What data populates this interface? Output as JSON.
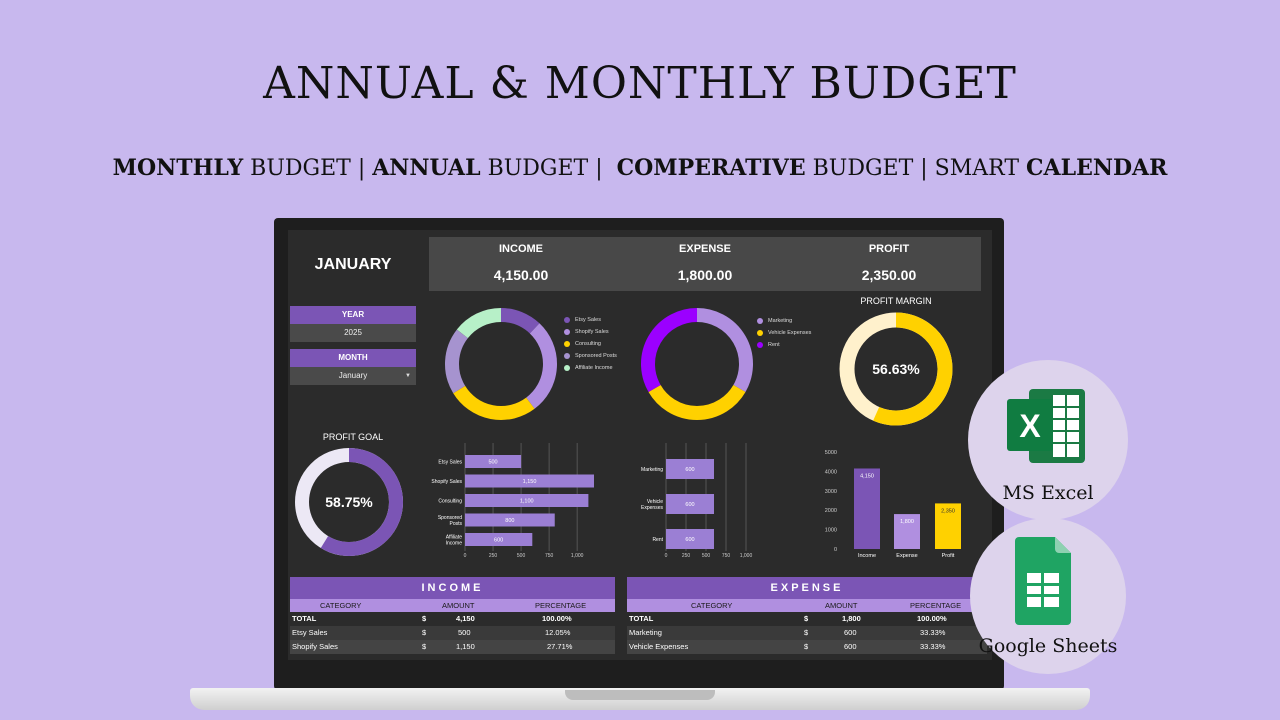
{
  "header": {
    "title": "ANNUAL & MONTHLY BUDGET",
    "subtitle_parts": [
      {
        "text": "MONTHLY",
        "bold": true
      },
      {
        "text": " BUDGET | ",
        "bold": false
      },
      {
        "text": "ANNUAL",
        "bold": true
      },
      {
        "text": " BUDGET |  ",
        "bold": false
      },
      {
        "text": "COMPERATIVE",
        "bold": true
      },
      {
        "text": " BUDGET | SMART ",
        "bold": false
      },
      {
        "text": "CALENDAR",
        "bold": true
      }
    ]
  },
  "dashboard": {
    "month_title": "JANUARY",
    "kpis": [
      {
        "label": "INCOME",
        "value": "4,150.00"
      },
      {
        "label": "EXPENSE",
        "value": "1,800.00"
      },
      {
        "label": "PROFIT",
        "value": "2,350.00"
      }
    ],
    "year": {
      "label": "YEAR",
      "value": "2025"
    },
    "month": {
      "label": "MONTH",
      "value": "January"
    },
    "profit_goal": {
      "label": "PROFIT GOAL",
      "value": "58.75%",
      "fraction": 0.5875
    },
    "profit_margin": {
      "label": "PROFIT MARGIN",
      "value": "56.63%",
      "fraction": 0.5663
    }
  },
  "colors": {
    "purple": "#7b55b5",
    "lavender": "#b08fe0",
    "mid_purple": "#9b7fd4",
    "yellow": "#ffd100",
    "mint": "#b7f0c8",
    "violet": "#9b00ff",
    "cream": "#fff1cc"
  },
  "chart_data": [
    {
      "type": "pie",
      "title": "",
      "labels": [
        "Etsy Sales",
        "Shopify Sales",
        "Consulting",
        "Sponsored Posts",
        "Affiliate Income"
      ],
      "values": [
        500,
        1150,
        1100,
        800,
        600
      ],
      "colors": [
        "#7b55b5",
        "#b08fe0",
        "#ffd100",
        "#a693cf",
        "#b7f0c8"
      ]
    },
    {
      "type": "pie",
      "title": "",
      "labels": [
        "Marketing",
        "Vehicle Expenses",
        "Rent"
      ],
      "values": [
        600,
        600,
        600
      ],
      "colors": [
        "#b08fe0",
        "#ffd100",
        "#9b00ff"
      ]
    },
    {
      "type": "bar",
      "orientation": "horizontal",
      "categories": [
        "Etsy Sales",
        "Shopify Sales",
        "Consulting",
        "Sponsored Posts",
        "Affiliate Income"
      ],
      "values": [
        500,
        1150,
        1100,
        800,
        600
      ],
      "value_labels": [
        "500",
        "1,150",
        "1,100",
        "800",
        "600"
      ],
      "xticks": [
        "0",
        "250",
        "500",
        "750",
        "1,000"
      ],
      "xlim": [
        0,
        1150
      ]
    },
    {
      "type": "bar",
      "orientation": "horizontal",
      "categories": [
        "Marketing",
        "Vehicle Expenses",
        "Rent"
      ],
      "values": [
        600,
        600,
        600
      ],
      "value_labels": [
        "600",
        "600",
        "600"
      ],
      "xticks": [
        "0",
        "250",
        "500",
        "750",
        "1,000"
      ],
      "xlim": [
        0,
        1150
      ]
    },
    {
      "type": "bar",
      "categories": [
        "Income",
        "Expense",
        "Profit"
      ],
      "values": [
        4150,
        1800,
        2350
      ],
      "value_labels": [
        "4,150",
        "1,800",
        "2,350"
      ],
      "colors": [
        "#7b55b5",
        "#b08fe0",
        "#ffd100"
      ],
      "yticks": [
        "0",
        "1000",
        "2000",
        "3000",
        "4000",
        "5000"
      ],
      "ylim": [
        0,
        5000
      ]
    }
  ],
  "income_table": {
    "title": "INCOME",
    "headers": [
      "CATEGORY",
      "AMOUNT",
      "PERCENTAGE"
    ],
    "rows": [
      {
        "category": "TOTAL",
        "currency": "$",
        "amount": "4,150",
        "percentage": "100.00%"
      },
      {
        "category": "Etsy Sales",
        "currency": "$",
        "amount": "500",
        "percentage": "12.05%"
      },
      {
        "category": "Shopify Sales",
        "currency": "$",
        "amount": "1,150",
        "percentage": "27.71%"
      }
    ]
  },
  "expense_table": {
    "title": "EXPENSE",
    "headers": [
      "CATEGORY",
      "AMOUNT",
      "PERCENTAGE"
    ],
    "rows": [
      {
        "category": "TOTAL",
        "currency": "$",
        "amount": "1,800",
        "percentage": "100.00%"
      },
      {
        "category": "Marketing",
        "currency": "$",
        "amount": "600",
        "percentage": "33.33%"
      },
      {
        "category": "Vehicle Expenses",
        "currency": "$",
        "amount": "600",
        "percentage": "33.33%"
      }
    ]
  },
  "badges": {
    "excel_label": "MS Excel",
    "sheets_label": "Google Sheets",
    "excel_icon": "excel-icon",
    "sheets_icon": "sheets-icon"
  }
}
